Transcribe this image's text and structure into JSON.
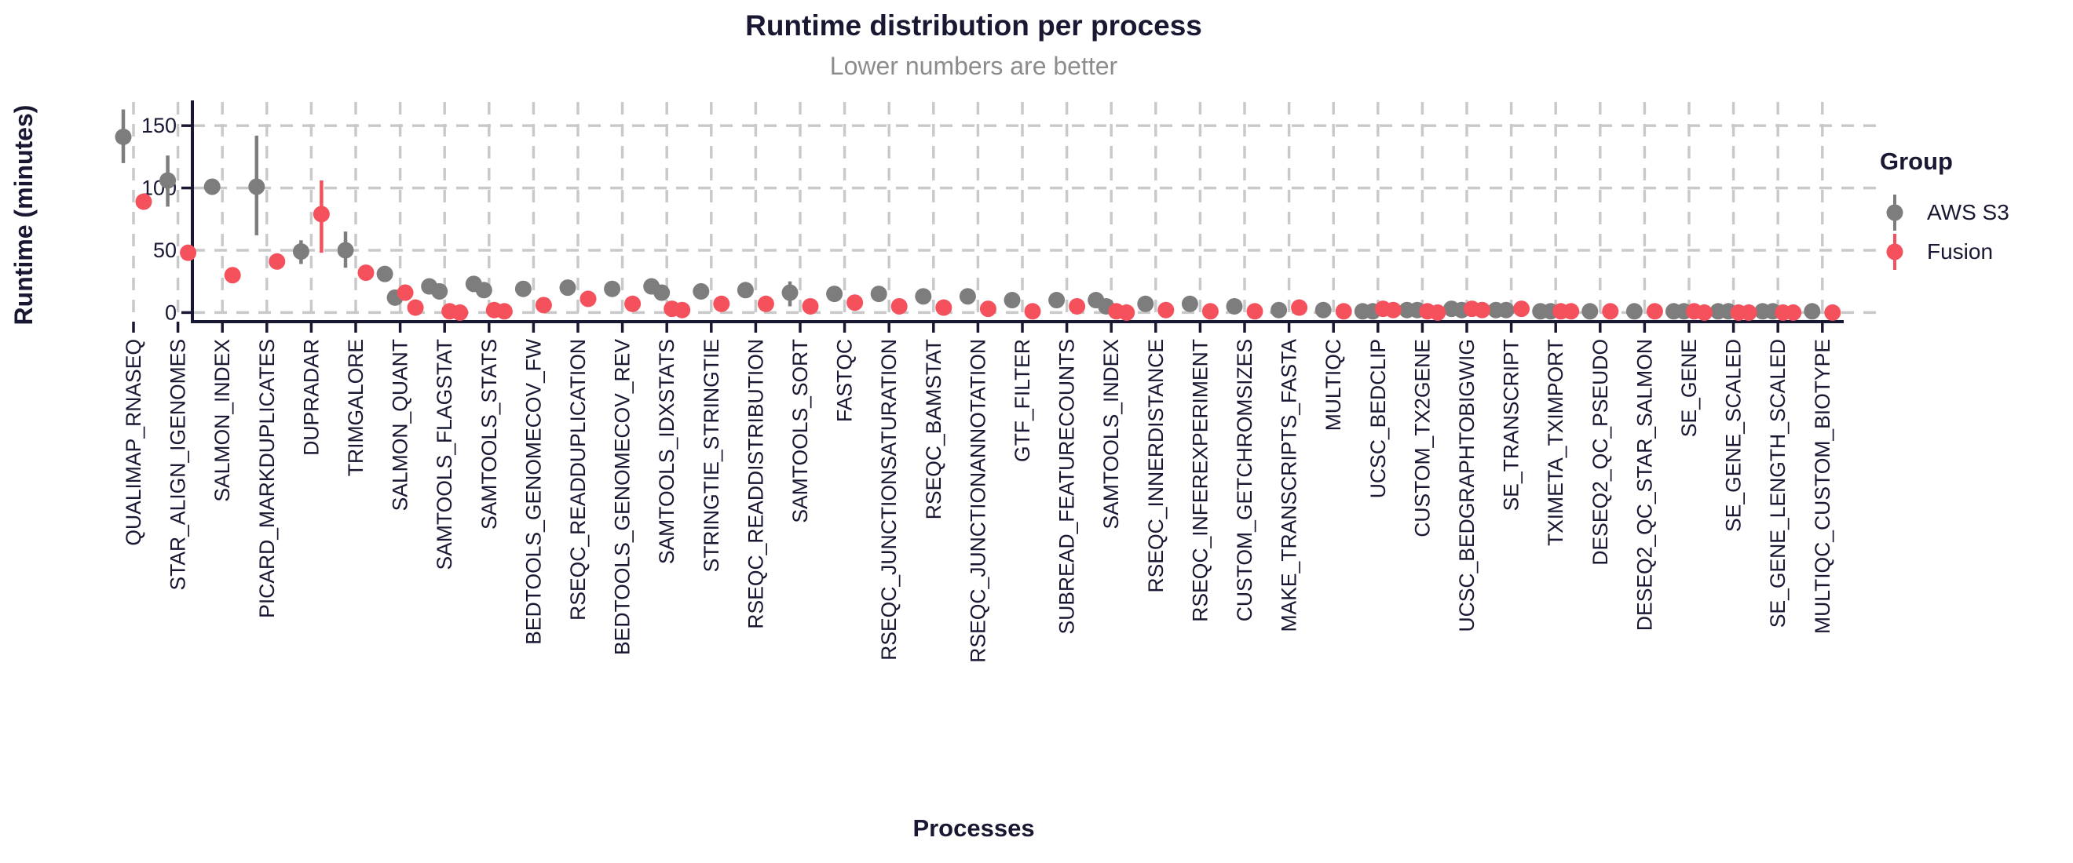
{
  "page": {
    "background": "#ffffff"
  },
  "header": {
    "title": "Runtime distribution per process",
    "subtitle": "Lower numbers are better"
  },
  "colors": {
    "aws_s3": "#7D7D7D",
    "fusion": "#F4515C",
    "text": "#181833",
    "subtitle": "#8C8C8C",
    "grid": "#C9C9C9",
    "axis": "#181833"
  },
  "legend": {
    "title": "Group",
    "items": [
      {
        "label": "AWS S3",
        "series": "aws_s3"
      },
      {
        "label": "Fusion",
        "series": "fusion"
      }
    ]
  },
  "chart_data": {
    "type": "scatter",
    "variant": "pointrange-dodged",
    "title": "Runtime distribution per process",
    "subtitle": "Lower numbers are better",
    "xlabel": "Processes",
    "ylabel": "Runtime (minutes)",
    "yticks": [
      0,
      50,
      100,
      150
    ],
    "ylim": [
      0,
      168
    ],
    "grid": "dashed-major",
    "legend_position": "right",
    "x_tick_rotation": 90,
    "categories": [
      "QUALIMAP_RNASEQ",
      "STAR_ALIGN_IGENOMES",
      "SALMON_INDEX",
      "PICARD_MARKDUPLICATES",
      "DUPRADAR",
      "TRIMGALORE",
      "SALMON_QUANT",
      "SAMTOOLS_FLAGSTAT",
      "SAMTOOLS_STATS",
      "BEDTOOLS_GENOMECOV_FW",
      "RSEQC_READDUPLICATION",
      "BEDTOOLS_GENOMECOV_REV",
      "SAMTOOLS_IDXSTATS",
      "STRINGTIE_STRINGTIE",
      "RSEQC_READDISTRIBUTION",
      "SAMTOOLS_SORT",
      "FASTQC",
      "RSEQC_JUNCTIONSATURATION",
      "RSEQC_BAMSTAT",
      "RSEQC_JUNCTIONANNOTATION",
      "GTF_FILTER",
      "SUBREAD_FEATURECOUNTS",
      "SAMTOOLS_INDEX",
      "RSEQC_INNERDISTANCE",
      "RSEQC_INFEREXPERIMENT",
      "CUSTOM_GETCHROMSIZES",
      "MAKE_TRANSCRIPTS_FASTA",
      "MULTIQC",
      "UCSC_BEDCLIP",
      "CUSTOM_TX2GENE",
      "UCSC_BEDGRAPHTOBIGWIG",
      "SE_TRANSCRIPT",
      "TXIMETA_TXIMPORT",
      "DESEQ2_QC_PSEUDO",
      "DESEQ2_QC_STAR_SALMON",
      "SE_GENE",
      "SE_GENE_SCALED",
      "SE_GENE_LENGTH_SCALED",
      "MULTIQC_CUSTOM_BIOTYPE"
    ],
    "series": [
      {
        "name": "AWS S3",
        "color": "#7D7D7D",
        "data": [
          {
            "points": [
              141
            ],
            "range": [
              120,
              163
            ]
          },
          {
            "points": [
              106
            ],
            "range": [
              85,
              126
            ]
          },
          {
            "points": [
              101
            ]
          },
          {
            "points": [
              101
            ],
            "range": [
              62,
              142
            ]
          },
          {
            "points": [
              49
            ],
            "range": [
              39,
              58
            ]
          },
          {
            "points": [
              50
            ],
            "range": [
              36,
              65
            ]
          },
          {
            "points": [
              31,
              12
            ]
          },
          {
            "points": [
              21,
              17
            ]
          },
          {
            "points": [
              23,
              18
            ]
          },
          {
            "points": [
              19
            ]
          },
          {
            "points": [
              20
            ]
          },
          {
            "points": [
              19
            ]
          },
          {
            "points": [
              21,
              16
            ]
          },
          {
            "points": [
              17
            ]
          },
          {
            "points": [
              18
            ]
          },
          {
            "points": [
              16
            ],
            "range": [
              5,
              25
            ]
          },
          {
            "points": [
              15
            ]
          },
          {
            "points": [
              15
            ]
          },
          {
            "points": [
              13
            ]
          },
          {
            "points": [
              13
            ]
          },
          {
            "points": [
              10
            ]
          },
          {
            "points": [
              10
            ]
          },
          {
            "points": [
              10,
              5
            ]
          },
          {
            "points": [
              7
            ]
          },
          {
            "points": [
              7
            ]
          },
          {
            "points": [
              5
            ]
          },
          {
            "points": [
              2
            ]
          },
          {
            "points": [
              2
            ]
          },
          {
            "points": [
              1,
              1
            ]
          },
          {
            "points": [
              2,
              2
            ]
          },
          {
            "points": [
              3,
              2
            ]
          },
          {
            "points": [
              2,
              2
            ]
          },
          {
            "points": [
              1,
              1
            ]
          },
          {
            "points": [
              1
            ]
          },
          {
            "points": [
              1
            ]
          },
          {
            "points": [
              1,
              1
            ]
          },
          {
            "points": [
              1,
              1
            ]
          },
          {
            "points": [
              1,
              1
            ]
          },
          {
            "points": [
              1
            ]
          }
        ]
      },
      {
        "name": "Fusion",
        "color": "#F4515C",
        "data": [
          {
            "points": [
              89
            ],
            "range": [
              84,
              95
            ]
          },
          {
            "points": [
              48
            ]
          },
          {
            "points": [
              30
            ]
          },
          {
            "points": [
              41
            ]
          },
          {
            "points": [
              79
            ],
            "range": [
              48,
              106
            ]
          },
          {
            "points": [
              32
            ]
          },
          {
            "points": [
              16,
              4
            ]
          },
          {
            "points": [
              1,
              0
            ]
          },
          {
            "points": [
              2,
              1
            ]
          },
          {
            "points": [
              6
            ]
          },
          {
            "points": [
              11
            ]
          },
          {
            "points": [
              7
            ]
          },
          {
            "points": [
              3,
              2
            ]
          },
          {
            "points": [
              7
            ]
          },
          {
            "points": [
              7
            ]
          },
          {
            "points": [
              5
            ]
          },
          {
            "points": [
              8
            ]
          },
          {
            "points": [
              5
            ]
          },
          {
            "points": [
              4
            ]
          },
          {
            "points": [
              3
            ]
          },
          {
            "points": [
              1
            ]
          },
          {
            "points": [
              5
            ]
          },
          {
            "points": [
              1,
              0
            ]
          },
          {
            "points": [
              2
            ]
          },
          {
            "points": [
              1
            ]
          },
          {
            "points": [
              1
            ]
          },
          {
            "points": [
              4
            ]
          },
          {
            "points": [
              1
            ]
          },
          {
            "points": [
              3,
              2
            ]
          },
          {
            "points": [
              1,
              0
            ]
          },
          {
            "points": [
              3,
              2
            ]
          },
          {
            "points": [
              3
            ]
          },
          {
            "points": [
              1,
              1
            ]
          },
          {
            "points": [
              1
            ]
          },
          {
            "points": [
              1
            ]
          },
          {
            "points": [
              1,
              0
            ]
          },
          {
            "points": [
              0,
              0
            ]
          },
          {
            "points": [
              0,
              0
            ]
          },
          {
            "points": [
              0
            ]
          }
        ]
      }
    ]
  }
}
